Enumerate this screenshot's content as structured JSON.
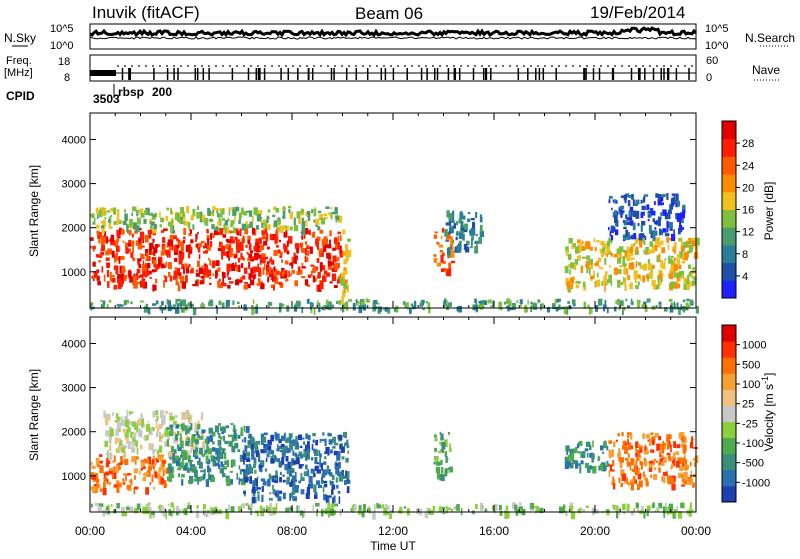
{
  "header": {
    "station": "Inuvik (fitACF)",
    "beam": "Beam 06",
    "date": "19/Feb/2014"
  },
  "status_panels": {
    "noise": {
      "left_label": "N.Sky",
      "right_label": "N.Search",
      "left_ticks": [
        "10^5",
        "10^0"
      ],
      "right_ticks": [
        "10^5",
        "10^0"
      ]
    },
    "freq": {
      "left_label_1": "Freq.",
      "left_label_2": "[MHz]",
      "right_label": "Nave",
      "left_ticks": [
        "18",
        "8"
      ],
      "right_ticks": [
        "60",
        "0"
      ]
    },
    "cpid": {
      "label": "CPID",
      "values": [
        "3503",
        "rbsp",
        "200"
      ]
    }
  },
  "chart_data": [
    {
      "type": "heatmap",
      "name": "power",
      "ylabel": "Slant Range [km]",
      "xlabel": "",
      "xlim_hours": [
        0,
        24
      ],
      "ylim": [
        180,
        4600
      ],
      "yticks": [
        1000,
        2000,
        3000,
        4000
      ],
      "colorbar": {
        "label": "Power [dB]",
        "ticks": [
          "28",
          "24",
          "20",
          "16",
          "12",
          "8",
          "4"
        ],
        "colors": [
          "#2020ff",
          "#1d4fa8",
          "#2a7e9a",
          "#4a9c6c",
          "#7fbf3e",
          "#f0c020",
          "#ff8c00",
          "#ff5a00",
          "#ff1e00",
          "#e00000"
        ]
      },
      "regions": [
        {
          "t0": 0.0,
          "t1": 9.9,
          "r0": 700,
          "r1": 2000,
          "level": 8
        },
        {
          "t0": 0.0,
          "t1": 9.9,
          "r0": 2000,
          "r1": 2500,
          "level": 4
        },
        {
          "t0": 9.9,
          "t1": 10.2,
          "r0": 180,
          "r1": 2000,
          "level": 5
        },
        {
          "t0": 13.6,
          "t1": 14.3,
          "r0": 1000,
          "r1": 2000,
          "level": 7
        },
        {
          "t0": 14.0,
          "t1": 15.5,
          "r0": 1500,
          "r1": 2400,
          "level": 2
        },
        {
          "t0": 18.8,
          "t1": 24.0,
          "r0": 700,
          "r1": 1800,
          "level": 5
        },
        {
          "t0": 20.5,
          "t1": 23.5,
          "r0": 1800,
          "r1": 2800,
          "level": 1
        },
        {
          "t0": 0.0,
          "t1": 24.0,
          "r0": 180,
          "r1": 400,
          "level": 3
        }
      ]
    },
    {
      "type": "heatmap",
      "name": "velocity",
      "ylabel": "Slant Range [km]",
      "xlabel": "Time UT",
      "xlim_hours": [
        0,
        24
      ],
      "ylim": [
        180,
        4600
      ],
      "yticks": [
        1000,
        2000,
        3000,
        4000
      ],
      "xtick_labels": [
        "00:00",
        "04:00",
        "08:00",
        "12:00",
        "16:00",
        "20:00",
        "00:00"
      ],
      "colorbar": {
        "label": "Velocity [m s^-1]",
        "ticks": [
          "1000",
          "500",
          "100",
          "25",
          "-25",
          "-100",
          "-500",
          "-1000"
        ],
        "colors": [
          "#1d3fb0",
          "#2a6fb0",
          "#3a8e7a",
          "#4eaa4e",
          "#8ccf3c",
          "#c8c8c8",
          "#f0c080",
          "#f5a030",
          "#ff7000",
          "#ff3000",
          "#e00000"
        ]
      },
      "regions": [
        {
          "t0": 0.0,
          "t1": 3.0,
          "r0": 700,
          "r1": 1500,
          "level": 8
        },
        {
          "t0": 0.5,
          "t1": 4.5,
          "r0": 1500,
          "r1": 2500,
          "level": 5
        },
        {
          "t0": 3.0,
          "t1": 6.5,
          "r0": 900,
          "r1": 2200,
          "level": 2
        },
        {
          "t0": 6.0,
          "t1": 10.2,
          "r0": 500,
          "r1": 2000,
          "level": 1
        },
        {
          "t0": 13.6,
          "t1": 14.3,
          "r0": 1000,
          "r1": 2000,
          "level": 3
        },
        {
          "t0": 18.8,
          "t1": 20.5,
          "r0": 1200,
          "r1": 1800,
          "level": 2
        },
        {
          "t0": 20.5,
          "t1": 24.0,
          "r0": 800,
          "r1": 2000,
          "level": 8
        },
        {
          "t0": 0.0,
          "t1": 24.0,
          "r0": 180,
          "r1": 400,
          "level": 4
        }
      ]
    }
  ]
}
